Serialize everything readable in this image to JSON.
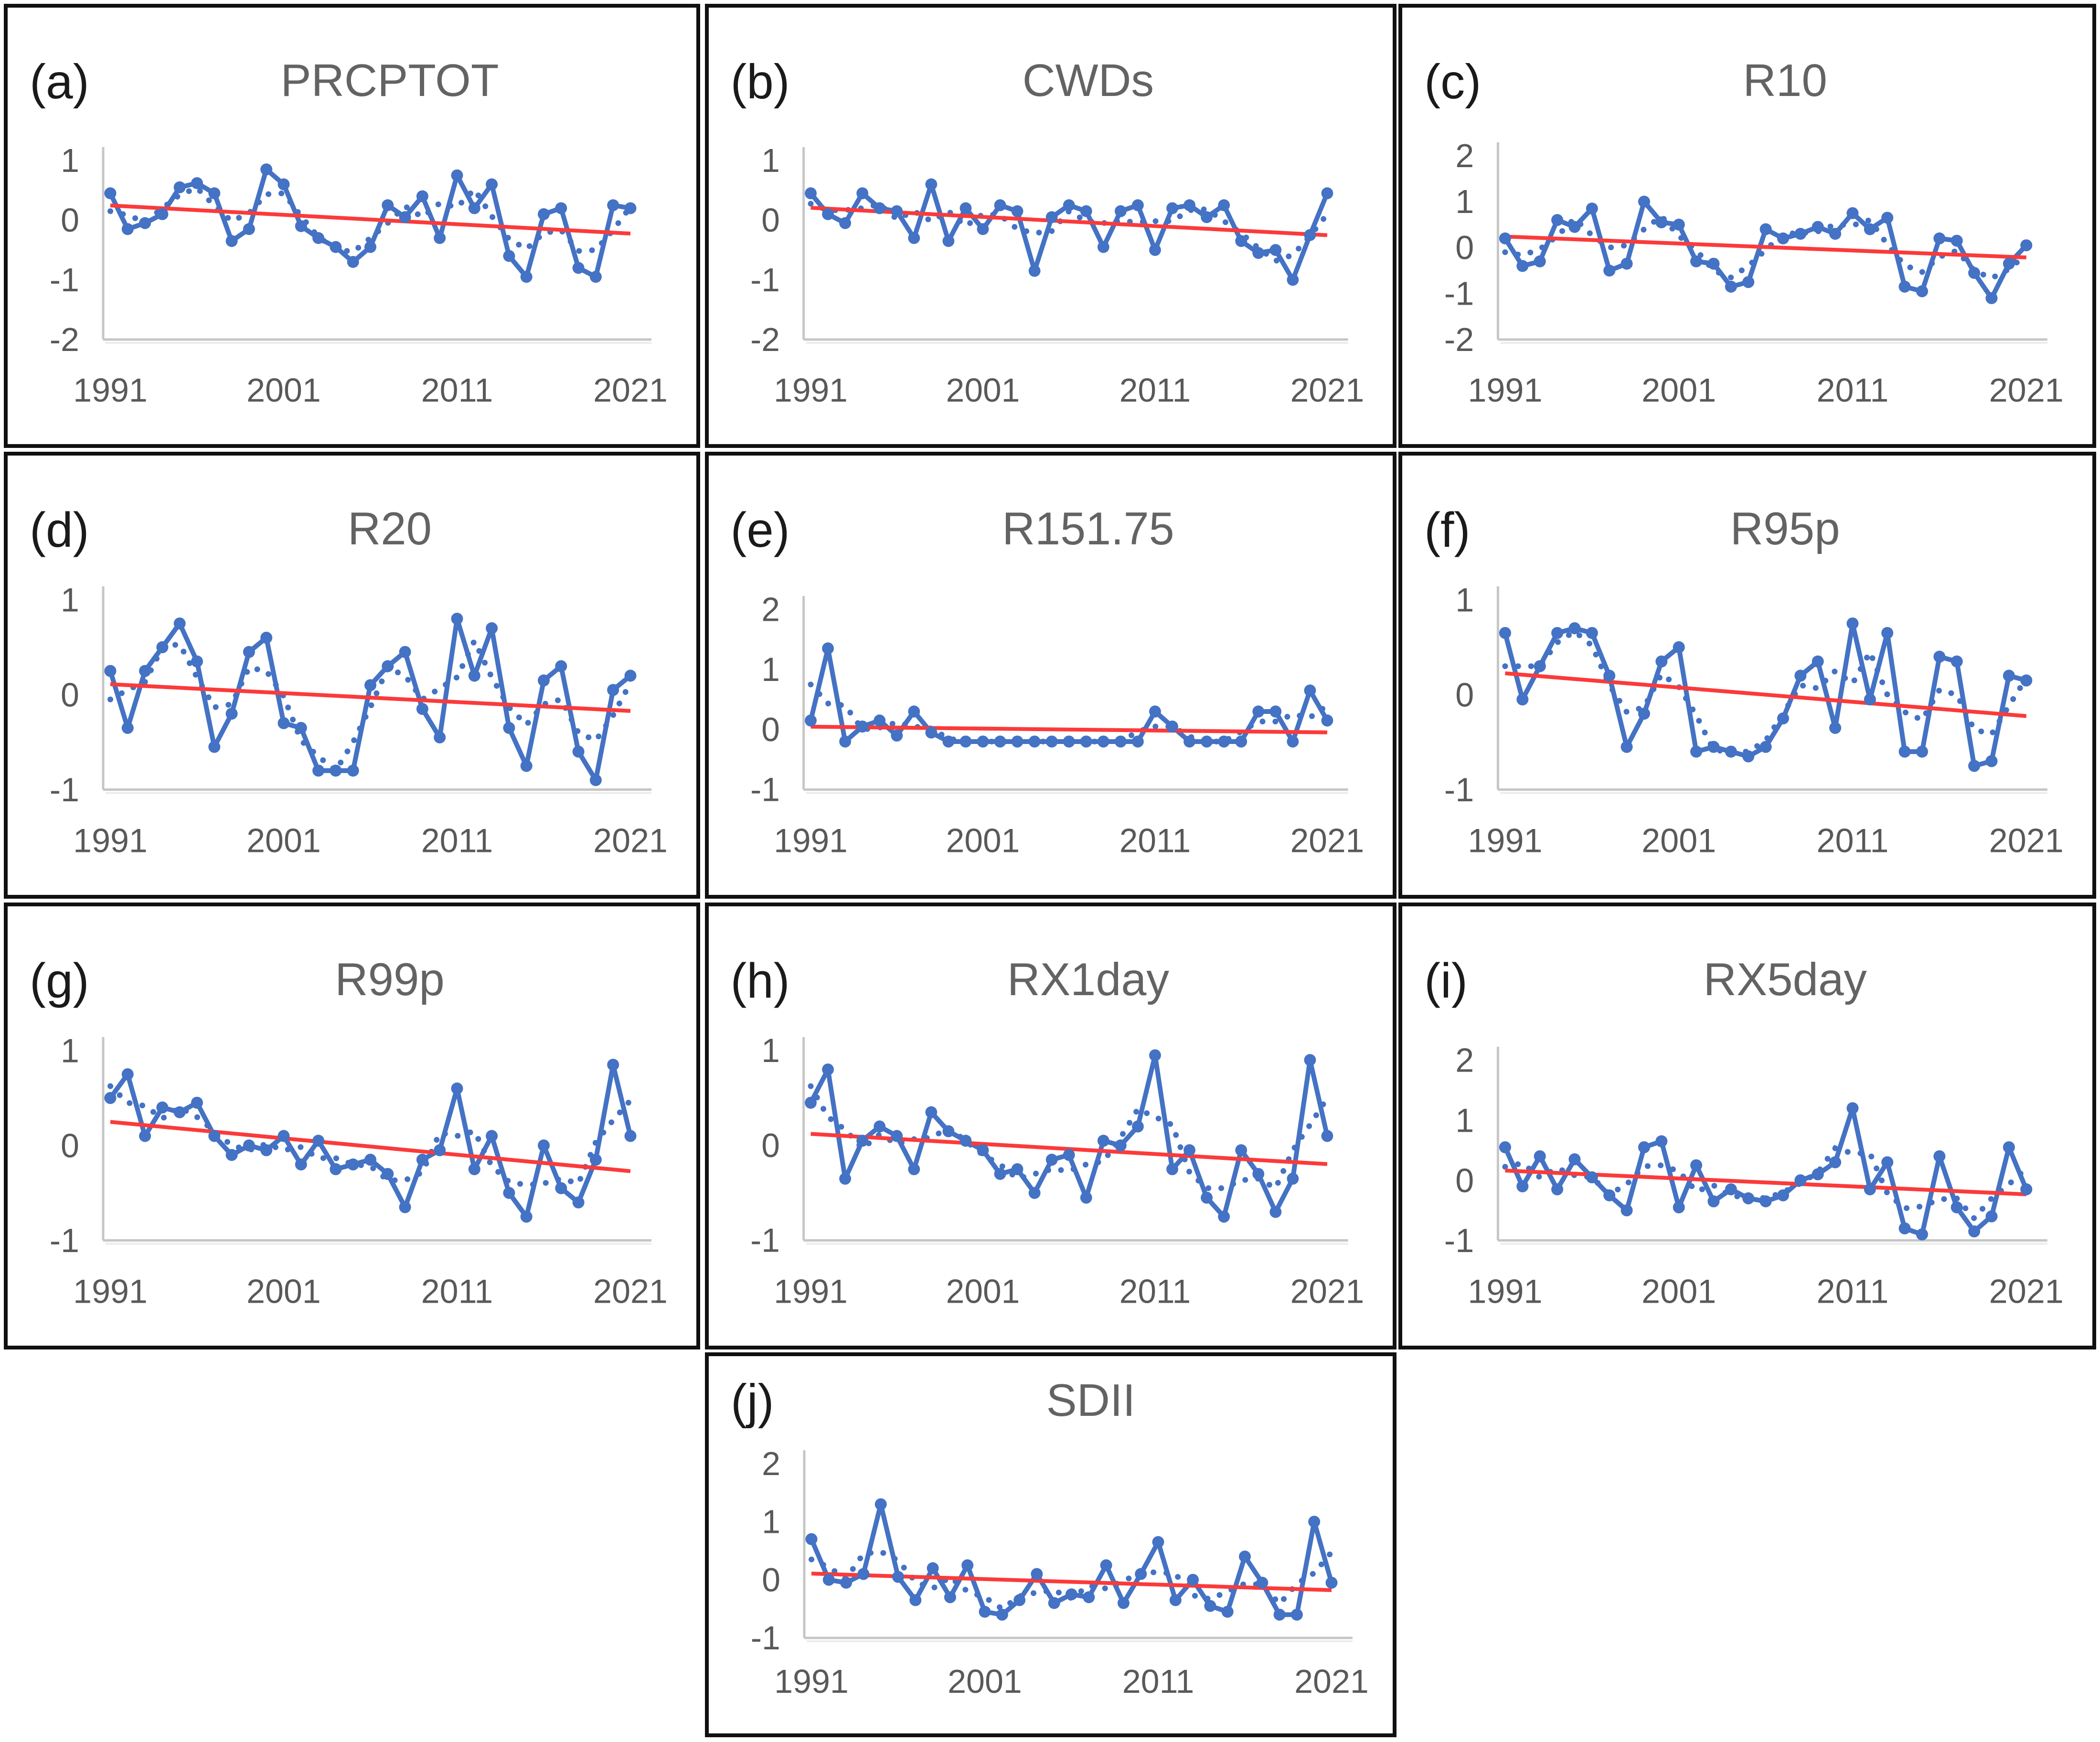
{
  "figure": {
    "x": {
      "start_year": 1991,
      "end_year": 2021,
      "step": 1
    },
    "x_tick_labels": [
      "1991",
      "2001",
      "2011",
      "2021"
    ],
    "colors": {
      "series": "#4472C4",
      "trend": "#FB3A3A",
      "axis": "#C6C6C6",
      "axis_shadow": "#ECECEC",
      "title": "#636363",
      "letter": "#1A1A1A",
      "tick": "#595959",
      "border": "#101010"
    },
    "line_styles": {
      "solid_markers": "annual standardized anomaly",
      "dotted": "smoothed series",
      "red": "linear trend"
    }
  },
  "chart_data": [
    {
      "id": "a",
      "label": "(a)",
      "title": "PRCPTOT",
      "type": "line",
      "y_ticks": [
        1,
        0,
        -1,
        -2
      ],
      "ylim": [
        -2,
        1
      ],
      "series": [
        {
          "name": "standardized-anomaly",
          "marker": "circle",
          "line": "solid",
          "values": [
            0.45,
            -0.15,
            -0.05,
            0.1,
            0.55,
            0.62,
            0.45,
            -0.35,
            -0.15,
            0.85,
            0.6,
            -0.1,
            -0.3,
            -0.45,
            -0.7,
            -0.45,
            0.25,
            0.05,
            0.4,
            -0.3,
            0.75,
            0.2,
            0.6,
            -0.6,
            -0.95,
            0.1,
            0.2,
            -0.8,
            -0.95,
            0.25,
            0.2
          ]
        },
        {
          "name": "smoothed",
          "line": "dotted",
          "derived_from": "standardized-anomaly",
          "method": "3-point-moving-average"
        },
        {
          "name": "linear-trend",
          "line": "red",
          "derived_from": "standardized-anomaly",
          "method": "least-squares"
        }
      ]
    },
    {
      "id": "b",
      "label": "(b)",
      "title": "CWDs",
      "type": "line",
      "y_ticks": [
        1,
        0,
        -1,
        -2
      ],
      "ylim": [
        -2,
        1
      ],
      "series": [
        {
          "name": "standardized-anomaly",
          "marker": "circle",
          "line": "solid",
          "values": [
            0.45,
            0.1,
            -0.05,
            0.45,
            0.2,
            0.15,
            -0.3,
            0.6,
            -0.35,
            0.2,
            -0.15,
            0.25,
            0.15,
            -0.85,
            0.05,
            0.25,
            0.15,
            -0.45,
            0.15,
            0.25,
            -0.5,
            0.2,
            0.25,
            0.05,
            0.25,
            -0.35,
            -0.55,
            -0.5,
            -1.0,
            -0.25,
            0.45
          ]
        },
        {
          "name": "smoothed",
          "line": "dotted",
          "derived_from": "standardized-anomaly",
          "method": "3-point-moving-average"
        },
        {
          "name": "linear-trend",
          "line": "red",
          "derived_from": "standardized-anomaly",
          "method": "least-squares"
        }
      ]
    },
    {
      "id": "c",
      "label": "(c)",
      "title": "R10",
      "type": "line",
      "y_ticks": [
        2,
        1,
        0,
        -1,
        -2
      ],
      "ylim": [
        -2,
        2
      ],
      "series": [
        {
          "name": "standardized-anomaly",
          "marker": "circle",
          "line": "solid",
          "values": [
            0.2,
            -0.4,
            -0.3,
            0.6,
            0.45,
            0.85,
            -0.5,
            -0.35,
            1.0,
            0.55,
            0.5,
            -0.3,
            -0.35,
            -0.85,
            -0.75,
            0.4,
            0.2,
            0.3,
            0.45,
            0.3,
            0.75,
            0.4,
            0.65,
            -0.85,
            -0.95,
            0.2,
            0.15,
            -0.55,
            -1.1,
            -0.35,
            0.05
          ]
        },
        {
          "name": "smoothed",
          "line": "dotted",
          "derived_from": "standardized-anomaly",
          "method": "3-point-moving-average"
        },
        {
          "name": "linear-trend",
          "line": "red",
          "derived_from": "standardized-anomaly",
          "method": "least-squares"
        }
      ]
    },
    {
      "id": "d",
      "label": "(d)",
      "title": "R20",
      "type": "line",
      "y_ticks": [
        1,
        0,
        -1
      ],
      "ylim": [
        -1,
        1
      ],
      "series": [
        {
          "name": "standardized-anomaly",
          "marker": "circle",
          "line": "solid",
          "values": [
            0.25,
            -0.35,
            0.25,
            0.5,
            0.75,
            0.35,
            -0.55,
            -0.2,
            0.45,
            0.6,
            -0.3,
            -0.35,
            -0.8,
            -0.8,
            -0.8,
            0.1,
            0.3,
            0.45,
            -0.15,
            -0.45,
            0.8,
            0.2,
            0.7,
            -0.35,
            -0.75,
            0.15,
            0.3,
            -0.6,
            -0.9,
            0.05,
            0.2
          ]
        },
        {
          "name": "smoothed",
          "line": "dotted",
          "derived_from": "standardized-anomaly",
          "method": "3-point-moving-average"
        },
        {
          "name": "linear-trend",
          "line": "red",
          "derived_from": "standardized-anomaly",
          "method": "least-squares"
        }
      ]
    },
    {
      "id": "e",
      "label": "(e)",
      "title": "R151.75",
      "type": "line",
      "y_ticks": [
        2,
        1,
        0,
        -1
      ],
      "ylim": [
        -1,
        2
      ],
      "series": [
        {
          "name": "standardized-anomaly",
          "marker": "circle",
          "line": "solid",
          "values": [
            0.15,
            1.35,
            -0.2,
            0.05,
            0.15,
            -0.1,
            0.3,
            -0.05,
            -0.2,
            -0.2,
            -0.2,
            -0.2,
            -0.2,
            -0.2,
            -0.2,
            -0.2,
            -0.2,
            -0.2,
            -0.2,
            -0.2,
            0.3,
            0.05,
            -0.2,
            -0.2,
            -0.2,
            -0.2,
            0.3,
            0.3,
            -0.2,
            0.65,
            0.15
          ]
        },
        {
          "name": "smoothed",
          "line": "dotted",
          "derived_from": "standardized-anomaly",
          "method": "3-point-moving-average"
        },
        {
          "name": "linear-trend",
          "line": "red",
          "derived_from": "standardized-anomaly",
          "method": "least-squares"
        }
      ]
    },
    {
      "id": "f",
      "label": "(f)",
      "title": "R95p",
      "type": "line",
      "y_ticks": [
        1,
        0,
        -1
      ],
      "ylim": [
        -1,
        1
      ],
      "series": [
        {
          "name": "standardized-anomaly",
          "marker": "circle",
          "line": "solid",
          "values": [
            0.65,
            -0.05,
            0.3,
            0.65,
            0.7,
            0.65,
            0.2,
            -0.55,
            -0.2,
            0.35,
            0.5,
            -0.6,
            -0.55,
            -0.6,
            -0.65,
            -0.55,
            -0.25,
            0.2,
            0.35,
            -0.35,
            0.75,
            -0.05,
            0.65,
            -0.6,
            -0.6,
            0.4,
            0.35,
            -0.75,
            -0.7,
            0.2,
            0.15
          ]
        },
        {
          "name": "smoothed",
          "line": "dotted",
          "derived_from": "standardized-anomaly",
          "method": "3-point-moving-average"
        },
        {
          "name": "linear-trend",
          "line": "red",
          "derived_from": "standardized-anomaly",
          "method": "least-squares"
        }
      ]
    },
    {
      "id": "g",
      "label": "(g)",
      "title": "R99p",
      "type": "line",
      "y_ticks": [
        1,
        0,
        -1
      ],
      "ylim": [
        -1,
        1
      ],
      "series": [
        {
          "name": "standardized-anomaly",
          "marker": "circle",
          "line": "solid",
          "values": [
            0.5,
            0.75,
            0.1,
            0.4,
            0.35,
            0.45,
            0.1,
            -0.1,
            0.0,
            -0.05,
            0.1,
            -0.2,
            0.05,
            -0.25,
            -0.2,
            -0.15,
            -0.3,
            -0.65,
            -0.15,
            -0.05,
            0.6,
            -0.25,
            0.1,
            -0.5,
            -0.75,
            0.0,
            -0.45,
            -0.6,
            -0.15,
            0.85,
            0.1
          ]
        },
        {
          "name": "smoothed",
          "line": "dotted",
          "derived_from": "standardized-anomaly",
          "method": "3-point-moving-average"
        },
        {
          "name": "linear-trend",
          "line": "red",
          "derived_from": "standardized-anomaly",
          "method": "least-squares"
        }
      ]
    },
    {
      "id": "h",
      "label": "(h)",
      "title": "RX1day",
      "type": "line",
      "y_ticks": [
        1,
        0,
        -1
      ],
      "ylim": [
        -1,
        1
      ],
      "series": [
        {
          "name": "standardized-anomaly",
          "marker": "circle",
          "line": "solid",
          "values": [
            0.45,
            0.8,
            -0.35,
            0.05,
            0.2,
            0.1,
            -0.25,
            0.35,
            0.15,
            0.05,
            -0.05,
            -0.3,
            -0.25,
            -0.5,
            -0.15,
            -0.1,
            -0.55,
            0.05,
            0.0,
            0.2,
            0.95,
            -0.25,
            -0.05,
            -0.55,
            -0.75,
            -0.05,
            -0.3,
            -0.7,
            -0.35,
            0.9,
            0.1
          ]
        },
        {
          "name": "smoothed",
          "line": "dotted",
          "derived_from": "standardized-anomaly",
          "method": "3-point-moving-average"
        },
        {
          "name": "linear-trend",
          "line": "red",
          "derived_from": "standardized-anomaly",
          "method": "least-squares"
        }
      ]
    },
    {
      "id": "i",
      "label": "(i)",
      "title": "RX5day",
      "type": "line",
      "y_ticks": [
        2,
        1,
        0,
        -1
      ],
      "ylim": [
        -1,
        2
      ],
      "series": [
        {
          "name": "standardized-anomaly",
          "marker": "circle",
          "line": "solid",
          "values": [
            0.55,
            -0.1,
            0.4,
            -0.15,
            0.35,
            0.05,
            -0.25,
            -0.5,
            0.55,
            0.65,
            -0.45,
            0.25,
            -0.35,
            -0.15,
            -0.3,
            -0.35,
            -0.25,
            0.0,
            0.1,
            0.3,
            1.2,
            -0.15,
            0.3,
            -0.8,
            -0.9,
            0.4,
            -0.45,
            -0.85,
            -0.6,
            0.55,
            -0.15
          ]
        },
        {
          "name": "smoothed",
          "line": "dotted",
          "derived_from": "standardized-anomaly",
          "method": "3-point-moving-average"
        },
        {
          "name": "linear-trend",
          "line": "red",
          "derived_from": "standardized-anomaly",
          "method": "least-squares"
        }
      ]
    },
    {
      "id": "j",
      "label": "(j)",
      "title": "SDII",
      "type": "line",
      "y_ticks": [
        2,
        1,
        0,
        -1
      ],
      "ylim": [
        -1,
        2
      ],
      "series": [
        {
          "name": "standardized-anomaly",
          "marker": "circle",
          "line": "solid",
          "values": [
            0.7,
            0.0,
            -0.05,
            0.1,
            1.3,
            0.05,
            -0.35,
            0.2,
            -0.3,
            0.25,
            -0.55,
            -0.6,
            -0.35,
            0.1,
            -0.4,
            -0.25,
            -0.3,
            0.25,
            -0.4,
            0.1,
            0.65,
            -0.35,
            0.0,
            -0.45,
            -0.55,
            0.4,
            -0.05,
            -0.6,
            -0.6,
            1.0,
            -0.05
          ]
        },
        {
          "name": "smoothed",
          "line": "dotted",
          "derived_from": "standardized-anomaly",
          "method": "3-point-moving-average"
        },
        {
          "name": "linear-trend",
          "line": "red",
          "derived_from": "standardized-anomaly",
          "method": "least-squares"
        }
      ]
    }
  ]
}
